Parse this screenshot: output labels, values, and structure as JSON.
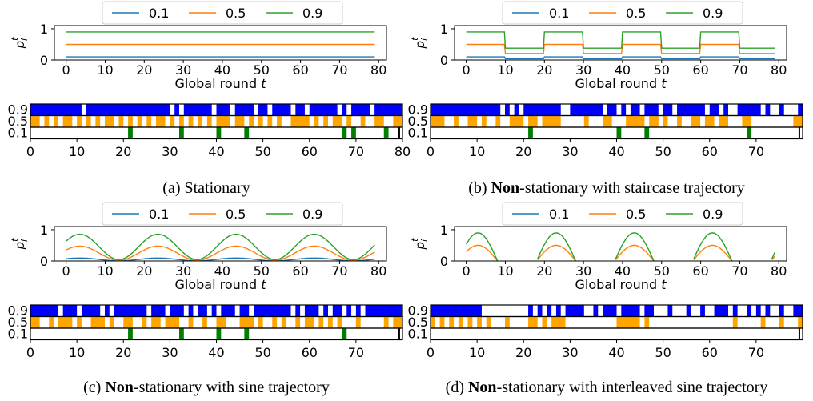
{
  "legend": {
    "entries": [
      {
        "label": "0.1",
        "color": "#1f77b4"
      },
      {
        "label": "0.5",
        "color": "#ff7f0e"
      },
      {
        "label": "0.9",
        "color": "#2ca02c"
      }
    ]
  },
  "activity_colors": {
    "0.9": "#0000ff",
    "0.5": "#ffa500",
    "0.1": "#008000"
  },
  "panels": [
    {
      "id": "a",
      "caption": {
        "prefix": "(a) ",
        "bold": "",
        "rest": "Stationary"
      },
      "line_chart": {
        "type": "line",
        "xlabel": "Global round t",
        "ylabel": "p_i^t",
        "xlim": [
          -3,
          82
        ],
        "ylim": [
          0,
          1.05
        ],
        "xticks": [
          0,
          10,
          20,
          30,
          40,
          50,
          60,
          70,
          80
        ],
        "yticks": [
          0,
          1
        ],
        "trajectory": "stationary",
        "series": [
          {
            "name": "0.1",
            "base": 0.1
          },
          {
            "name": "0.5",
            "base": 0.5
          },
          {
            "name": "0.9",
            "base": 0.9
          }
        ]
      },
      "activity_chart": {
        "xticks": [
          0,
          10,
          20,
          30,
          40,
          50,
          60,
          70,
          80
        ],
        "xlim": [
          0,
          80
        ],
        "rows": [
          {
            "label": "0.9",
            "segments": [
              [
                0,
                11
              ],
              [
                12,
                30
              ],
              [
                31,
                32
              ],
              [
                33,
                39
              ],
              [
                40,
                43
              ],
              [
                44,
                48
              ],
              [
                49,
                51
              ],
              [
                52,
                56
              ],
              [
                57,
                59
              ],
              [
                60,
                66
              ],
              [
                67,
                68
              ],
              [
                69,
                73
              ],
              [
                74,
                80
              ]
            ]
          },
          {
            "label": "0.5",
            "segments": [
              [
                0,
                2
              ],
              [
                3,
                4
              ],
              [
                5,
                6
              ],
              [
                7,
                9
              ],
              [
                10,
                11
              ],
              [
                12,
                13
              ],
              [
                14,
                15
              ],
              [
                16,
                18
              ],
              [
                19,
                20
              ],
              [
                21,
                22
              ],
              [
                23,
                24
              ],
              [
                25,
                26
              ],
              [
                27,
                29
              ],
              [
                30,
                31
              ],
              [
                32,
                33
              ],
              [
                34,
                35
              ],
              [
                36,
                37
              ],
              [
                38,
                39
              ],
              [
                40,
                43
              ],
              [
                44,
                46
              ],
              [
                47,
                48
              ],
              [
                49,
                50
              ],
              [
                51,
                52
              ],
              [
                53,
                54
              ],
              [
                56,
                60
              ],
              [
                61,
                62
              ],
              [
                63,
                64
              ],
              [
                65,
                67
              ],
              [
                68,
                69
              ],
              [
                71,
                72
              ],
              [
                74,
                76
              ],
              [
                78,
                80
              ]
            ]
          },
          {
            "label": "0.1",
            "segments": [
              [
                21,
                22
              ],
              [
                32,
                33
              ],
              [
                40,
                41
              ],
              [
                46,
                47
              ],
              [
                67,
                68
              ],
              [
                69,
                70
              ],
              [
                76,
                77
              ]
            ]
          }
        ]
      }
    },
    {
      "id": "b",
      "caption": {
        "prefix": "(b) ",
        "bold": "Non",
        "rest": "-stationary with staircase trajectory"
      },
      "line_chart": {
        "type": "line",
        "xlabel": "Global round t",
        "ylabel": "p_i^t",
        "xlim": [
          -3,
          82
        ],
        "ylim": [
          0,
          1.05
        ],
        "xticks": [
          0,
          10,
          20,
          30,
          40,
          50,
          60,
          70,
          80
        ],
        "yticks": [
          0,
          1
        ],
        "trajectory": "staircase",
        "series": [
          {
            "name": "0.1",
            "base": 0.1
          },
          {
            "name": "0.5",
            "base": 0.5
          },
          {
            "name": "0.9",
            "base": 0.9
          }
        ]
      },
      "activity_chart": {
        "xticks": [
          0,
          10,
          20,
          30,
          40,
          50,
          60,
          70
        ],
        "xlim": [
          0,
          80
        ],
        "rows": [
          {
            "label": "0.9",
            "segments": [
              [
                0,
                15
              ],
              [
                16,
                17
              ],
              [
                18,
                19
              ],
              [
                20,
                28
              ],
              [
                30,
                37
              ],
              [
                38,
                40
              ],
              [
                41,
                42
              ],
              [
                43,
                45
              ],
              [
                46,
                49
              ],
              [
                50,
                52
              ],
              [
                53,
                59
              ],
              [
                60,
                62
              ],
              [
                63,
                64
              ],
              [
                66,
                71
              ],
              [
                72,
                73
              ],
              [
                75,
                76
              ],
              [
                79,
                80
              ]
            ]
          },
          {
            "label": "0.5",
            "segments": [
              [
                0,
                3
              ],
              [
                5,
                6
              ],
              [
                8,
                10
              ],
              [
                11,
                12
              ],
              [
                14,
                15
              ],
              [
                17,
                20
              ],
              [
                21,
                23
              ],
              [
                24,
                28
              ],
              [
                33,
                34
              ],
              [
                37,
                39
              ],
              [
                42,
                46
              ],
              [
                47,
                49
              ],
              [
                50,
                51
              ],
              [
                53,
                54
              ],
              [
                56,
                58
              ],
              [
                59,
                61
              ],
              [
                62,
                64
              ],
              [
                67,
                69
              ],
              [
                78,
                80
              ]
            ]
          },
          {
            "label": "0.1",
            "segments": [
              [
                21,
                22
              ],
              [
                40,
                41
              ],
              [
                46,
                47
              ],
              [
                68,
                69
              ]
            ]
          }
        ]
      }
    },
    {
      "id": "c",
      "caption": {
        "prefix": "(c) ",
        "bold": "Non",
        "rest": "-stationary with sine trajectory"
      },
      "line_chart": {
        "type": "line",
        "xlabel": "Global round t",
        "ylabel": "p_i^t",
        "xlim": [
          -3,
          82
        ],
        "ylim": [
          0,
          1.05
        ],
        "xticks": [
          0,
          10,
          20,
          30,
          40,
          50,
          60,
          70,
          80
        ],
        "yticks": [
          0,
          1
        ],
        "trajectory": "sine",
        "series": [
          {
            "name": "0.1",
            "base": 0.1
          },
          {
            "name": "0.5",
            "base": 0.5
          },
          {
            "name": "0.9",
            "base": 0.9
          }
        ]
      },
      "activity_chart": {
        "xticks": [
          0,
          10,
          20,
          30,
          40,
          50,
          60,
          70
        ],
        "xlim": [
          0,
          80
        ],
        "rows": [
          {
            "label": "0.9",
            "segments": [
              [
                0,
                6
              ],
              [
                7,
                10
              ],
              [
                11,
                15
              ],
              [
                16,
                17
              ],
              [
                18,
                25
              ],
              [
                26,
                29
              ],
              [
                30,
                33
              ],
              [
                34,
                35
              ],
              [
                36,
                38
              ],
              [
                39,
                40
              ],
              [
                41,
                44
              ],
              [
                45,
                47
              ],
              [
                48,
                56
              ],
              [
                57,
                58
              ],
              [
                59,
                62
              ],
              [
                63,
                64
              ],
              [
                65,
                67
              ],
              [
                68,
                69
              ],
              [
                70,
                71
              ],
              [
                72,
                80
              ]
            ]
          },
          {
            "label": "0.5",
            "segments": [
              [
                0,
                2
              ],
              [
                4,
                5
              ],
              [
                6,
                9
              ],
              [
                10,
                11
              ],
              [
                13,
                16
              ],
              [
                17,
                18
              ],
              [
                20,
                22
              ],
              [
                24,
                25
              ],
              [
                26,
                28
              ],
              [
                29,
                32
              ],
              [
                34,
                35
              ],
              [
                37,
                38
              ],
              [
                40,
                42
              ],
              [
                45,
                48
              ],
              [
                49,
                50
              ],
              [
                52,
                53
              ],
              [
                54,
                55
              ],
              [
                57,
                58
              ],
              [
                59,
                61
              ],
              [
                62,
                63
              ],
              [
                64,
                65
              ],
              [
                66,
                67
              ],
              [
                70,
                71
              ],
              [
                76,
                77
              ],
              [
                78,
                80
              ]
            ]
          },
          {
            "label": "0.1",
            "segments": [
              [
                21,
                22
              ],
              [
                32,
                33
              ],
              [
                40,
                41
              ],
              [
                46,
                47
              ],
              [
                67,
                68
              ]
            ]
          }
        ]
      }
    },
    {
      "id": "d",
      "caption": {
        "prefix": "(d) ",
        "bold": "Non",
        "rest": "-stationary with interleaved sine trajectory"
      },
      "line_chart": {
        "type": "line",
        "xlabel": "Global round t",
        "ylabel": "p_i^t",
        "xlim": [
          -3,
          82
        ],
        "ylim": [
          0,
          1.05
        ],
        "xticks": [
          0,
          10,
          20,
          30,
          40,
          50,
          60,
          70,
          80
        ],
        "yticks": [
          0,
          1
        ],
        "trajectory": "interleaved_sine",
        "series": [
          {
            "name": "0.1",
            "base": 0.1
          },
          {
            "name": "0.5",
            "base": 0.5
          },
          {
            "name": "0.9",
            "base": 0.9
          }
        ]
      },
      "activity_chart": {
        "xticks": [
          0,
          10,
          20,
          30,
          40,
          50,
          60,
          70
        ],
        "xlim": [
          0,
          80
        ],
        "rows": [
          {
            "label": "0.9",
            "segments": [
              [
                0,
                11
              ],
              [
                21,
                22
              ],
              [
                23,
                24
              ],
              [
                25,
                26
              ],
              [
                27,
                28
              ],
              [
                29,
                33
              ],
              [
                35,
                36
              ],
              [
                37,
                40
              ],
              [
                41,
                45
              ],
              [
                46,
                48
              ],
              [
                51,
                52
              ],
              [
                55,
                56
              ],
              [
                58,
                59
              ],
              [
                61,
                64
              ],
              [
                65,
                66
              ],
              [
                68,
                69
              ],
              [
                70,
                71
              ],
              [
                72,
                73
              ],
              [
                75,
                76
              ],
              [
                78,
                80
              ]
            ]
          },
          {
            "label": "0.5",
            "segments": [
              [
                0,
                1
              ],
              [
                2,
                3
              ],
              [
                4,
                5
              ],
              [
                6,
                7
              ],
              [
                8,
                9
              ],
              [
                10,
                11
              ],
              [
                12,
                13
              ],
              [
                16,
                17
              ],
              [
                21,
                23
              ],
              [
                24,
                25
              ],
              [
                26,
                29
              ],
              [
                40,
                45
              ],
              [
                46,
                47
              ],
              [
                65,
                66
              ],
              [
                71,
                72
              ],
              [
                75,
                76
              ],
              [
                79,
                80
              ]
            ]
          },
          {
            "label": "0.1",
            "segments": []
          }
        ]
      }
    }
  ]
}
